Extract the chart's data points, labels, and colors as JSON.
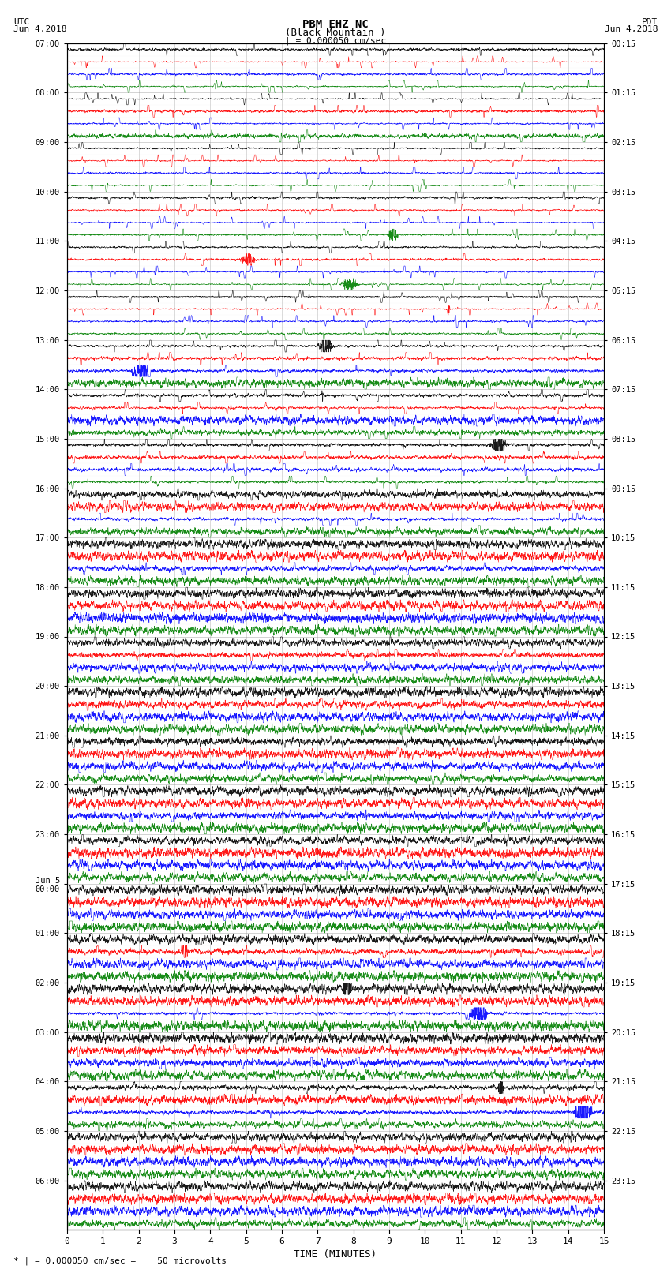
{
  "title_line1": "PBM EHZ NC",
  "title_line2": "(Black Mountain )",
  "scale_label": "| = 0.000050 cm/sec",
  "left_label": "UTC\nJun 4,2018",
  "right_label": "PDT\nJun 4,2018",
  "bottom_label": "* | = 0.000050 cm/sec =    50 microvolts",
  "xlabel": "TIME (MINUTES)",
  "left_times": [
    "07:00",
    "08:00",
    "09:00",
    "10:00",
    "11:00",
    "12:00",
    "13:00",
    "14:00",
    "15:00",
    "16:00",
    "17:00",
    "18:00",
    "19:00",
    "20:00",
    "21:00",
    "22:00",
    "23:00",
    "Jun 5\n00:00",
    "01:00",
    "02:00",
    "03:00",
    "04:00",
    "05:00",
    "06:00"
  ],
  "right_times": [
    "00:15",
    "01:15",
    "02:15",
    "03:15",
    "04:15",
    "05:15",
    "06:15",
    "07:15",
    "08:15",
    "09:15",
    "10:15",
    "11:15",
    "12:15",
    "13:15",
    "14:15",
    "15:15",
    "16:15",
    "17:15",
    "18:15",
    "19:15",
    "20:15",
    "21:15",
    "22:15",
    "23:15"
  ],
  "colors": [
    "black",
    "red",
    "blue",
    "green"
  ],
  "bg_color": "white",
  "num_rows": 24,
  "traces_per_row": 4,
  "minutes": 15,
  "seed": 42
}
